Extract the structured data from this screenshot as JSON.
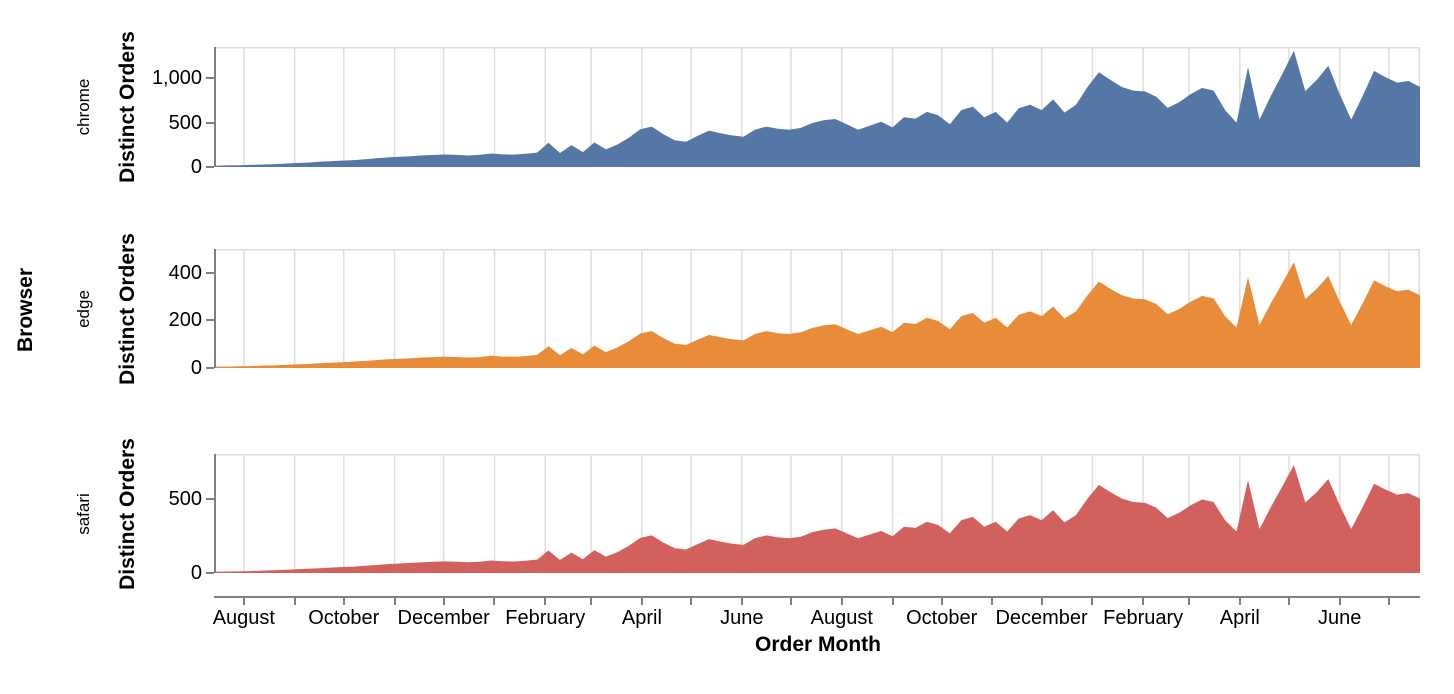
{
  "figure": {
    "row_header": "Browser",
    "x_title": "Order Month",
    "y_title": "Distinct Orders"
  },
  "colors": {
    "axis": "#808080",
    "grid": "#dddddd",
    "panel_border": "#dddddd",
    "background": "#ffffff",
    "text": "#000000",
    "chrome_area": "#5577a5",
    "edge_area": "#e88c3a",
    "safari_area": "#d2615e"
  },
  "chart_data": {
    "type": "area",
    "title": "",
    "facet_row_field": "Browser",
    "xlabel": "Order Month",
    "ylabel": "Distinct Orders",
    "grid": "vertical-month-gridlines",
    "legend_position": "none",
    "x_unit": "week-index (weekly points, 7-day step)",
    "x_total_days": 735,
    "month_boundary_days": [
      17,
      48,
      78,
      109,
      139,
      170,
      201,
      229,
      260,
      290,
      321,
      351,
      382,
      413,
      443,
      474,
      504,
      535,
      566,
      594,
      625,
      655,
      686,
      716
    ],
    "labeled_tick_days": [
      17,
      78,
      139,
      201,
      260,
      321,
      382,
      443,
      504,
      566,
      625,
      686
    ],
    "x_tick_labels": [
      "August",
      "October",
      "December",
      "February",
      "April",
      "June",
      "August",
      "October",
      "December",
      "February",
      "April",
      "June"
    ],
    "facets": [
      {
        "name": "chrome",
        "color_key": "chrome_area",
        "ylim": [
          0,
          1350
        ],
        "yticks": [
          0,
          500,
          1000
        ],
        "ytick_labels": [
          "0",
          "500",
          "1,000"
        ],
        "values": [
          15,
          18,
          20,
          24,
          28,
          32,
          38,
          45,
          50,
          58,
          65,
          72,
          78,
          88,
          98,
          108,
          116,
          122,
          130,
          136,
          141,
          136,
          129,
          136,
          152,
          142,
          139,
          148,
          162,
          272,
          158,
          246,
          168,
          277,
          198,
          252,
          330,
          425,
          455,
          370,
          300,
          285,
          350,
          410,
          380,
          355,
          340,
          420,
          455,
          430,
          420,
          440,
          495,
          525,
          540,
          480,
          420,
          465,
          510,
          445,
          560,
          545,
          620,
          580,
          480,
          640,
          680,
          560,
          620,
          500,
          660,
          700,
          640,
          760,
          612,
          700,
          900,
          1066,
          980,
          900,
          860,
          850,
          790,
          665,
          730,
          820,
          890,
          860,
          640,
          500,
          1122,
          533,
          800,
          1050,
          1308,
          854,
          980,
          1138,
          820,
          533,
          800,
          1081,
          1010,
          950,
          967,
          900
        ]
      },
      {
        "name": "edge",
        "color_key": "edge_area",
        "ylim": [
          0,
          500
        ],
        "yticks": [
          0,
          200,
          400
        ],
        "ytick_labels": [
          "0",
          "200",
          "400"
        ],
        "values": [
          5,
          6,
          7,
          8,
          10,
          11,
          13,
          15,
          17,
          20,
          22,
          24,
          27,
          30,
          33,
          37,
          39,
          41,
          44,
          46,
          48,
          46,
          44,
          46,
          52,
          48,
          47,
          50,
          55,
          92,
          54,
          84,
          57,
          94,
          67,
          86,
          112,
          145,
          155,
          126,
          102,
          97,
          119,
          139,
          129,
          121,
          116,
          143,
          155,
          146,
          143,
          150,
          168,
          179,
          184,
          163,
          143,
          158,
          173,
          151,
          190,
          185,
          211,
          197,
          163,
          218,
          231,
          190,
          211,
          170,
          224,
          238,
          218,
          258,
          208,
          238,
          306,
          363,
          333,
          306,
          292,
          289,
          269,
          226,
          248,
          279,
          303,
          292,
          218,
          170,
          381,
          181,
          272,
          357,
          445,
          290,
          333,
          387,
          279,
          181,
          272,
          368,
          343,
          323,
          329,
          306
        ]
      },
      {
        "name": "safari",
        "color_key": "safari_area",
        "ylim": [
          0,
          800
        ],
        "yticks": [
          0,
          500
        ],
        "ytick_labels": [
          "0",
          "500"
        ],
        "values": [
          8,
          10,
          11,
          13,
          16,
          18,
          21,
          25,
          28,
          32,
          36,
          40,
          43,
          49,
          54,
          60,
          64,
          68,
          72,
          75,
          78,
          75,
          72,
          75,
          84,
          79,
          77,
          82,
          90,
          151,
          88,
          137,
          93,
          154,
          110,
          140,
          183,
          236,
          253,
          205,
          167,
          158,
          194,
          228,
          211,
          197,
          189,
          233,
          253,
          239,
          233,
          244,
          275,
          291,
          300,
          266,
          233,
          258,
          283,
          247,
          311,
          303,
          344,
          322,
          266,
          355,
          377,
          311,
          344,
          278,
          366,
          389,
          355,
          422,
          340,
          389,
          500,
          592,
          544,
          500,
          477,
          472,
          438,
          369,
          405,
          455,
          494,
          477,
          355,
          278,
          623,
          296,
          444,
          583,
          726,
          474,
          544,
          632,
          455,
          296,
          444,
          600,
          561,
          527,
          537,
          500
        ]
      }
    ]
  }
}
